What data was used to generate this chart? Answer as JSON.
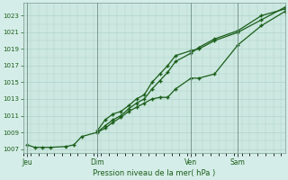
{
  "xlabel": "Pression niveau de la mer( hPa )",
  "bg_color": "#d5ede8",
  "plot_bg": "#cce8e0",
  "grid_color": "#b0d4cc",
  "line_color": "#1a5e1a",
  "ylim": [
    1006.5,
    1024.5
  ],
  "yticks": [
    1007,
    1009,
    1011,
    1013,
    1015,
    1017,
    1019,
    1021,
    1023
  ],
  "xtick_labels": [
    "Jeu",
    "Dim",
    "Ven",
    "Sam"
  ],
  "xtick_positions": [
    0,
    36,
    84,
    108
  ],
  "xlim": [
    -2,
    132
  ],
  "vlines": [
    0,
    36,
    84,
    108
  ],
  "s1_x": [
    0,
    4,
    8,
    12,
    20,
    24,
    28,
    36,
    40,
    44,
    48,
    52,
    56,
    60,
    64,
    68,
    72,
    76,
    84,
    88,
    96,
    108,
    120,
    132
  ],
  "s1_y": [
    1007.5,
    1007.2,
    1007.2,
    1007.2,
    1007.3,
    1007.5,
    1008.5,
    1009.0,
    1009.5,
    1010.2,
    1010.8,
    1011.5,
    1012.0,
    1012.5,
    1013.0,
    1013.2,
    1013.2,
    1014.2,
    1015.5,
    1015.5,
    1016.0,
    1019.5,
    1021.8,
    1023.5
  ],
  "s2_x": [
    36,
    40,
    44,
    48,
    52,
    56,
    60,
    64,
    68,
    72,
    76,
    84,
    88,
    96,
    108,
    120,
    132
  ],
  "s2_y": [
    1009.2,
    1010.5,
    1011.2,
    1011.5,
    1012.2,
    1013.0,
    1013.5,
    1015.0,
    1016.0,
    1017.0,
    1018.2,
    1018.8,
    1019.0,
    1020.0,
    1021.0,
    1022.5,
    1024.0
  ],
  "s3_x": [
    36,
    40,
    44,
    48,
    52,
    56,
    60,
    64,
    68,
    72,
    76,
    84,
    88,
    96,
    108,
    120,
    132
  ],
  "s3_y": [
    1009.0,
    1009.8,
    1010.5,
    1011.0,
    1011.8,
    1012.5,
    1013.0,
    1014.2,
    1015.2,
    1016.2,
    1017.5,
    1018.5,
    1019.2,
    1020.2,
    1021.2,
    1023.0,
    1023.8
  ]
}
